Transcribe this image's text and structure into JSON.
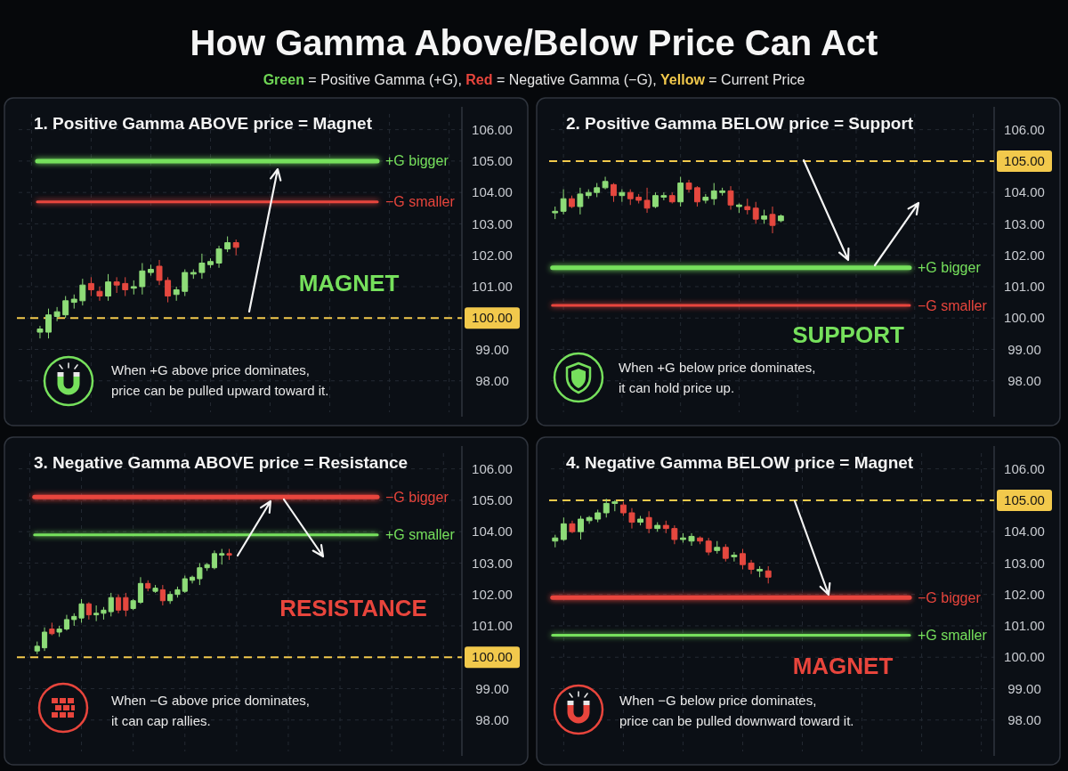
{
  "chart_data": [
    {
      "type": "other",
      "title": "How Gamma Above/Below Price Can Act",
      "subtitle": "Green = Positive Gamma (+G), Red = Negative Gamma (−G), Yellow = Current Price",
      "colors": [
        "#6fd655",
        "#e8453c",
        "#f2c94c"
      ]
    },
    {
      "type": "candlestick",
      "title": "1. Positive Gamma ABOVE price = Magnet",
      "categories": [
        null,
        null,
        null,
        null,
        null,
        null,
        null,
        null,
        null,
        null,
        null,
        null,
        null,
        null,
        null,
        null,
        null,
        null,
        null,
        null,
        null,
        null,
        null,
        null,
        null,
        null,
        null,
        null,
        null,
        null,
        null,
        null,
        null,
        null,
        null,
        null,
        null,
        null,
        null,
        null,
        null,
        null,
        null,
        null,
        null,
        null,
        null,
        null,
        null,
        null,
        null,
        null
      ],
      "ohlc": [
        null,
        null,
        [
          99.55,
          99.75,
          99.35,
          99.65
        ],
        [
          99.55,
          100.3,
          99.35,
          100.1
        ],
        [
          100.05,
          100.35,
          99.9,
          100.2
        ],
        [
          100.1,
          100.7,
          100.0,
          100.55
        ],
        [
          100.5,
          100.75,
          100.3,
          100.6
        ],
        [
          100.55,
          101.25,
          100.4,
          101.05
        ],
        [
          101.1,
          101.3,
          100.7,
          100.9
        ],
        [
          100.85,
          101.0,
          100.55,
          100.7
        ],
        [
          100.7,
          101.4,
          100.55,
          101.15
        ],
        [
          101.15,
          101.3,
          100.8,
          101.05
        ],
        [
          101.1,
          101.3,
          100.7,
          100.9
        ],
        [
          100.95,
          101.2,
          100.75,
          101.0
        ],
        [
          101.0,
          101.75,
          100.75,
          101.5
        ],
        [
          101.45,
          101.7,
          101.35,
          101.55
        ],
        [
          101.65,
          101.85,
          101.05,
          101.2
        ],
        [
          101.2,
          101.3,
          100.5,
          100.7
        ],
        [
          100.75,
          101.0,
          100.55,
          100.9
        ],
        [
          100.85,
          101.55,
          100.7,
          101.45
        ],
        [
          101.4,
          101.55,
          101.25,
          101.45
        ],
        [
          101.45,
          102.05,
          101.25,
          101.75
        ],
        [
          101.7,
          101.9,
          101.6,
          101.8
        ],
        [
          101.75,
          102.3,
          101.6,
          102.2
        ],
        [
          102.2,
          102.6,
          102.1,
          102.4
        ],
        [
          102.4,
          102.5,
          102.0,
          102.25
        ],
        null,
        null,
        null,
        null,
        null,
        null,
        null,
        null,
        null,
        null,
        null,
        null,
        null,
        null,
        null,
        null,
        null,
        null,
        null,
        null,
        null,
        null,
        null,
        null,
        null,
        null
      ],
      "ylim": [
        97,
        106.5
      ],
      "yticks": [
        {
          "value": 106,
          "label": "106.00"
        },
        {
          "value": 105,
          "label": "105.00"
        },
        {
          "value": 104,
          "label": "104.00"
        },
        {
          "value": 103,
          "label": "103.00"
        },
        {
          "value": 102,
          "label": "102.00"
        },
        {
          "value": 101,
          "label": "101.00"
        },
        {
          "value": 100,
          "label": null
        },
        {
          "value": 99,
          "label": "99.00"
        },
        {
          "value": 98,
          "label": "98.00"
        }
      ],
      "tick_labels": "y",
      "grid": true,
      "ref_lines": [
        {
          "axis": "y",
          "value": 105,
          "label": "+G bigger",
          "color": "#76e05c"
        },
        {
          "axis": "y",
          "value": 103.7,
          "label": "−G smaller",
          "color": "#e8453c"
        },
        {
          "axis": "y",
          "value": 100,
          "label": "100.00",
          "color": "#f2c94c",
          "line_style": "dashed"
        }
      ],
      "annotations": [
        "MAGNET",
        "When +G above price dominates,\nprice can be pulled upward toward it."
      ]
    },
    {
      "type": "candlestick",
      "title": "2. Positive Gamma BELOW price = Support",
      "categories": [
        null,
        null,
        null,
        null,
        null,
        null,
        null,
        null,
        null,
        null,
        null,
        null,
        null,
        null,
        null,
        null,
        null,
        null,
        null,
        null,
        null,
        null,
        null,
        null,
        null,
        null,
        null,
        null,
        null,
        null,
        null,
        null,
        null,
        null,
        null,
        null,
        null,
        null,
        null,
        null,
        null,
        null,
        null,
        null,
        null,
        null,
        null,
        null,
        null,
        null,
        null,
        null,
        null
      ],
      "ohlc": [
        [
          103.35,
          103.55,
          103.15,
          103.4
        ],
        [
          103.4,
          104.1,
          103.3,
          103.8
        ],
        [
          103.8,
          103.9,
          103.5,
          103.55
        ],
        [
          103.55,
          104.15,
          103.3,
          103.95
        ],
        [
          103.9,
          104.1,
          103.8,
          104.0
        ],
        [
          104.0,
          104.3,
          103.85,
          104.15
        ],
        [
          104.15,
          104.5,
          104.1,
          104.35
        ],
        [
          104.25,
          104.3,
          103.7,
          103.9
        ],
        [
          103.9,
          104.1,
          103.7,
          104.0
        ],
        [
          104.0,
          104.1,
          103.6,
          103.8
        ],
        [
          103.85,
          103.95,
          103.65,
          103.75
        ],
        [
          103.75,
          104.15,
          103.35,
          103.5
        ],
        [
          103.55,
          104.0,
          103.5,
          103.9
        ],
        [
          103.85,
          104.0,
          103.75,
          103.9
        ],
        [
          103.9,
          104.0,
          103.65,
          103.7
        ],
        [
          103.7,
          104.5,
          103.55,
          104.3
        ],
        [
          104.3,
          104.4,
          104.0,
          104.1
        ],
        [
          104.15,
          104.2,
          103.55,
          103.7
        ],
        [
          103.75,
          103.95,
          103.65,
          103.85
        ],
        [
          103.8,
          104.3,
          103.6,
          104.05
        ],
        [
          104.0,
          104.15,
          103.9,
          104.05
        ],
        [
          104.05,
          104.2,
          103.45,
          103.6
        ],
        [
          103.55,
          103.65,
          103.35,
          103.6
        ],
        [
          103.55,
          103.8,
          103.3,
          103.45
        ],
        [
          103.5,
          103.7,
          103.0,
          103.15
        ],
        [
          103.15,
          103.45,
          103.0,
          103.25
        ],
        [
          103.3,
          103.55,
          102.7,
          102.95
        ],
        [
          103.1,
          103.3,
          103.05,
          103.25
        ],
        null,
        null,
        null,
        null,
        null,
        null,
        null,
        null,
        null,
        null,
        null,
        null,
        null,
        null,
        null,
        null,
        null,
        null,
        null,
        null,
        null,
        null,
        null,
        null,
        null
      ],
      "ylim": [
        97,
        106.5
      ],
      "yticks": [
        {
          "value": 106,
          "label": "106.00"
        },
        {
          "value": 105,
          "label": null
        },
        {
          "value": 104,
          "label": "104.00"
        },
        {
          "value": 103,
          "label": "103.00"
        },
        {
          "value": 102,
          "label": "102.00"
        },
        {
          "value": 101,
          "label": "101.00"
        },
        {
          "value": 100,
          "label": "100.00"
        },
        {
          "value": 99,
          "label": "99.00"
        },
        {
          "value": 98,
          "label": "98.00"
        }
      ],
      "tick_labels": "y",
      "grid": true,
      "ref_lines": [
        {
          "axis": "y",
          "value": 101.6,
          "label": "+G bigger",
          "color": "#76e05c"
        },
        {
          "axis": "y",
          "value": 100.4,
          "label": "−G smaller",
          "color": "#e8453c"
        },
        {
          "axis": "y",
          "value": 105,
          "label": "105.00",
          "color": "#f2c94c",
          "line_style": "dashed"
        }
      ],
      "annotations": [
        "SUPPORT",
        "When +G below price dominates,\nit can hold price up."
      ]
    },
    {
      "type": "candlestick",
      "title": "3. Negative Gamma ABOVE price = Resistance",
      "categories": [
        null,
        null,
        null,
        null,
        null,
        null,
        null,
        null,
        null,
        null,
        null,
        null,
        null,
        null,
        null,
        null,
        null,
        null,
        null,
        null,
        null,
        null,
        null,
        null,
        null,
        null,
        null,
        null,
        null,
        null,
        null,
        null,
        null,
        null,
        null,
        null,
        null,
        null,
        null,
        null,
        null,
        null,
        null,
        null,
        null,
        null,
        null,
        null,
        null,
        null,
        null,
        null,
        null,
        null,
        null,
        null,
        null,
        null,
        null,
        null
      ],
      "ohlc": [
        null,
        null,
        [
          100.2,
          100.5,
          100.1,
          100.35
        ],
        [
          100.3,
          100.95,
          100.2,
          100.8
        ],
        [
          100.9,
          101.1,
          100.7,
          100.75
        ],
        [
          100.8,
          101.0,
          100.65,
          100.9
        ],
        [
          100.9,
          101.35,
          100.85,
          101.2
        ],
        [
          101.2,
          101.4,
          101.0,
          101.3
        ],
        [
          101.25,
          101.85,
          101.1,
          101.7
        ],
        [
          101.7,
          101.75,
          101.2,
          101.35
        ],
        [
          101.35,
          101.65,
          101.15,
          101.4
        ],
        [
          101.4,
          101.6,
          101.2,
          101.5
        ],
        [
          101.45,
          102.05,
          101.3,
          101.9
        ],
        [
          101.9,
          102.0,
          101.4,
          101.5
        ],
        [
          101.9,
          102.05,
          101.3,
          101.5
        ],
        [
          101.55,
          101.85,
          101.5,
          101.8
        ],
        [
          101.75,
          102.55,
          101.7,
          102.35
        ],
        [
          102.35,
          102.45,
          102.1,
          102.2
        ],
        [
          102.1,
          102.3,
          102.05,
          102.2
        ],
        [
          102.15,
          102.3,
          101.65,
          101.8
        ],
        [
          101.8,
          102.1,
          101.7,
          102.0
        ],
        [
          102.0,
          102.25,
          101.9,
          102.15
        ],
        [
          102.1,
          102.6,
          102.05,
          102.5
        ],
        [
          102.45,
          102.6,
          102.35,
          102.55
        ],
        [
          102.5,
          103.0,
          102.3,
          102.85
        ],
        [
          102.85,
          103.0,
          102.75,
          102.95
        ],
        [
          102.85,
          103.4,
          102.8,
          103.3
        ],
        [
          103.25,
          103.45,
          102.95,
          103.3
        ],
        [
          103.3,
          103.45,
          103.1,
          103.25
        ],
        null,
        null,
        null,
        null,
        null,
        null,
        null,
        null,
        null,
        null,
        null,
        null,
        null,
        null,
        null,
        null,
        null,
        null,
        null,
        null,
        null,
        null,
        null,
        null,
        null,
        null,
        null,
        null,
        null,
        null,
        null
      ],
      "ylim": [
        97,
        106.5
      ],
      "yticks": [
        {
          "value": 106,
          "label": "106.00"
        },
        {
          "value": 105,
          "label": "105.00"
        },
        {
          "value": 104,
          "label": "104.00"
        },
        {
          "value": 103,
          "label": "103.00"
        },
        {
          "value": 102,
          "label": "102.00"
        },
        {
          "value": 101,
          "label": "101.00"
        },
        {
          "value": 100,
          "label": null
        },
        {
          "value": 99,
          "label": "99.00"
        },
        {
          "value": 98,
          "label": "98.00"
        }
      ],
      "tick_labels": "y",
      "grid": true,
      "ref_lines": [
        {
          "axis": "y",
          "value": 105.1,
          "label": "−G bigger",
          "color": "#e8453c"
        },
        {
          "axis": "y",
          "value": 103.9,
          "label": "+G smaller",
          "color": "#76e05c"
        },
        {
          "axis": "y",
          "value": 100,
          "label": "100.00",
          "color": "#f2c94c",
          "line_style": "dashed"
        }
      ],
      "annotations": [
        "RESISTANCE",
        "When −G above price dominates,\nit can cap rallies."
      ]
    },
    {
      "type": "candlestick",
      "title": "4. Negative Gamma BELOW price = Magnet",
      "categories": [
        null,
        null,
        null,
        null,
        null,
        null,
        null,
        null,
        null,
        null,
        null,
        null,
        null,
        null,
        null,
        null,
        null,
        null,
        null,
        null,
        null,
        null,
        null,
        null,
        null,
        null,
        null,
        null,
        null,
        null,
        null,
        null,
        null,
        null,
        null,
        null,
        null,
        null,
        null,
        null,
        null,
        null,
        null,
        null,
        null,
        null,
        null,
        null,
        null,
        null,
        null,
        null
      ],
      "ohlc": [
        [
          103.7,
          103.9,
          103.5,
          103.8
        ],
        [
          103.75,
          104.45,
          103.7,
          104.25
        ],
        [
          104.25,
          104.35,
          103.95,
          104.0
        ],
        [
          104.0,
          104.5,
          103.75,
          104.4
        ],
        [
          104.35,
          104.5,
          104.25,
          104.45
        ],
        [
          104.4,
          104.7,
          104.3,
          104.6
        ],
        [
          104.6,
          105.05,
          104.45,
          104.9
        ],
        [
          104.9,
          105.0,
          104.65,
          104.95
        ],
        [
          104.85,
          104.95,
          104.5,
          104.6
        ],
        [
          104.6,
          104.75,
          104.1,
          104.3
        ],
        [
          104.3,
          104.5,
          104.2,
          104.4
        ],
        [
          104.45,
          104.65,
          103.95,
          104.1
        ],
        [
          104.1,
          104.3,
          104.0,
          104.2
        ],
        [
          104.2,
          104.35,
          103.95,
          104.1
        ],
        [
          104.1,
          104.2,
          103.6,
          103.75
        ],
        [
          103.75,
          103.95,
          103.65,
          103.8
        ],
        [
          103.7,
          103.95,
          103.55,
          103.85
        ],
        [
          103.8,
          103.85,
          103.6,
          103.7
        ],
        [
          103.7,
          103.8,
          103.25,
          103.35
        ],
        [
          103.4,
          103.7,
          103.3,
          103.5
        ],
        [
          103.5,
          103.6,
          103.05,
          103.15
        ],
        [
          103.2,
          103.35,
          103.05,
          103.25
        ],
        [
          103.3,
          103.45,
          102.8,
          102.95
        ],
        [
          103.0,
          103.1,
          102.65,
          102.8
        ],
        [
          102.75,
          102.9,
          102.55,
          102.8
        ],
        [
          102.75,
          102.9,
          102.35,
          102.55
        ],
        null,
        null,
        null,
        null,
        null,
        null,
        null,
        null,
        null,
        null,
        null,
        null,
        null,
        null,
        null,
        null,
        null,
        null,
        null,
        null,
        null,
        null,
        null,
        null,
        null,
        null
      ],
      "ylim": [
        97,
        106.5
      ],
      "yticks": [
        {
          "value": 106,
          "label": "106.00"
        },
        {
          "value": 105,
          "label": null
        },
        {
          "value": 104,
          "label": "104.00"
        },
        {
          "value": 103,
          "label": "103.00"
        },
        {
          "value": 102,
          "label": "102.00"
        },
        {
          "value": 101,
          "label": "101.00"
        },
        {
          "value": 100,
          "label": "100.00"
        },
        {
          "value": 99,
          "label": "99.00"
        },
        {
          "value": 98,
          "label": "98.00"
        }
      ],
      "tick_labels": "y",
      "grid": true,
      "ref_lines": [
        {
          "axis": "y",
          "value": 101.9,
          "label": "−G bigger",
          "color": "#e8453c"
        },
        {
          "axis": "y",
          "value": 100.7,
          "label": "+G smaller",
          "color": "#76e05c"
        },
        {
          "axis": "y",
          "value": 105,
          "label": "105.00",
          "color": "#f2c94c",
          "line_style": "dashed"
        }
      ],
      "annotations": [
        "MAGNET",
        "When −G below price dominates,\nprice can be pulled downward toward it."
      ]
    }
  ]
}
